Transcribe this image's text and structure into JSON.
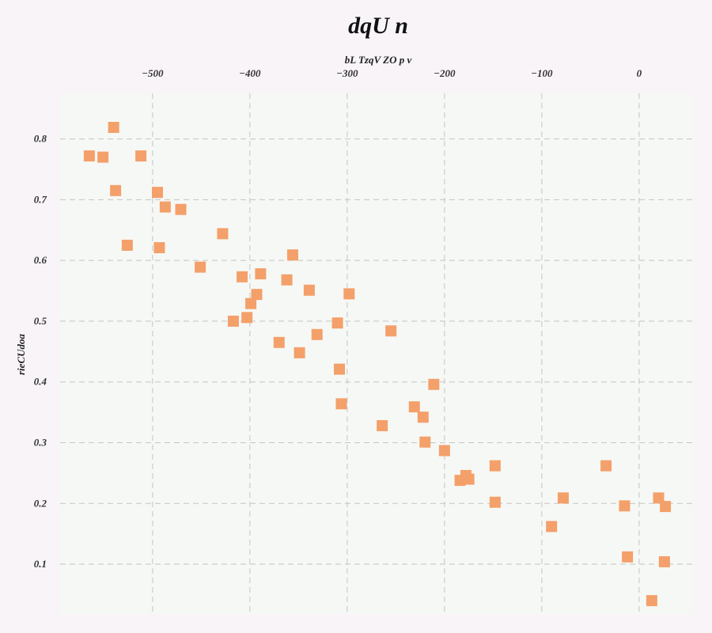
{
  "chart_data": {
    "type": "scatter",
    "title": "dqU n",
    "xlabel": "bL TzqV ZO p v",
    "ylabel": "rieCUdoa",
    "x_axis_position": "top",
    "xlim": [
      -595,
      57
    ],
    "ylim": [
      0.018,
      0.875
    ],
    "x_ticks": [
      -500,
      -400,
      -300,
      -200,
      -100,
      0
    ],
    "y_ticks": [
      0.1,
      0.2,
      0.3,
      0.4,
      0.5,
      0.6,
      0.7,
      0.8
    ],
    "grid": true,
    "legend": "none",
    "series": [
      {
        "marker": "square",
        "color": "#f4a06a",
        "points": [
          [
            -540,
            0.819
          ],
          [
            -565,
            0.772
          ],
          [
            -551,
            0.77
          ],
          [
            -512,
            0.772
          ],
          [
            -538,
            0.715
          ],
          [
            -495,
            0.712
          ],
          [
            -487,
            0.688
          ],
          [
            -471,
            0.684
          ],
          [
            -526,
            0.625
          ],
          [
            -493,
            0.621
          ],
          [
            -428,
            0.644
          ],
          [
            -451,
            0.589
          ],
          [
            -356,
            0.609
          ],
          [
            -408,
            0.573
          ],
          [
            -389,
            0.578
          ],
          [
            -362,
            0.568
          ],
          [
            -393,
            0.544
          ],
          [
            -339,
            0.551
          ],
          [
            -298,
            0.545
          ],
          [
            -399,
            0.529
          ],
          [
            -417,
            0.5
          ],
          [
            -403,
            0.506
          ],
          [
            -310,
            0.497
          ],
          [
            -331,
            0.478
          ],
          [
            -255,
            0.484
          ],
          [
            -370,
            0.465
          ],
          [
            -349,
            0.448
          ],
          [
            -308,
            0.421
          ],
          [
            -211,
            0.396
          ],
          [
            -306,
            0.364
          ],
          [
            -264,
            0.328
          ],
          [
            -231,
            0.359
          ],
          [
            -222,
            0.342
          ],
          [
            -220,
            0.301
          ],
          [
            -200,
            0.287
          ],
          [
            -148,
            0.262
          ],
          [
            -178,
            0.246
          ],
          [
            -175,
            0.24
          ],
          [
            -184,
            0.238
          ],
          [
            -34,
            0.262
          ],
          [
            -78,
            0.209
          ],
          [
            -148,
            0.202
          ],
          [
            20,
            0.209
          ],
          [
            27,
            0.195
          ],
          [
            -15,
            0.196
          ],
          [
            -90,
            0.162
          ],
          [
            -12,
            0.112
          ],
          [
            26,
            0.104
          ],
          [
            13,
            0.04
          ]
        ]
      }
    ]
  }
}
